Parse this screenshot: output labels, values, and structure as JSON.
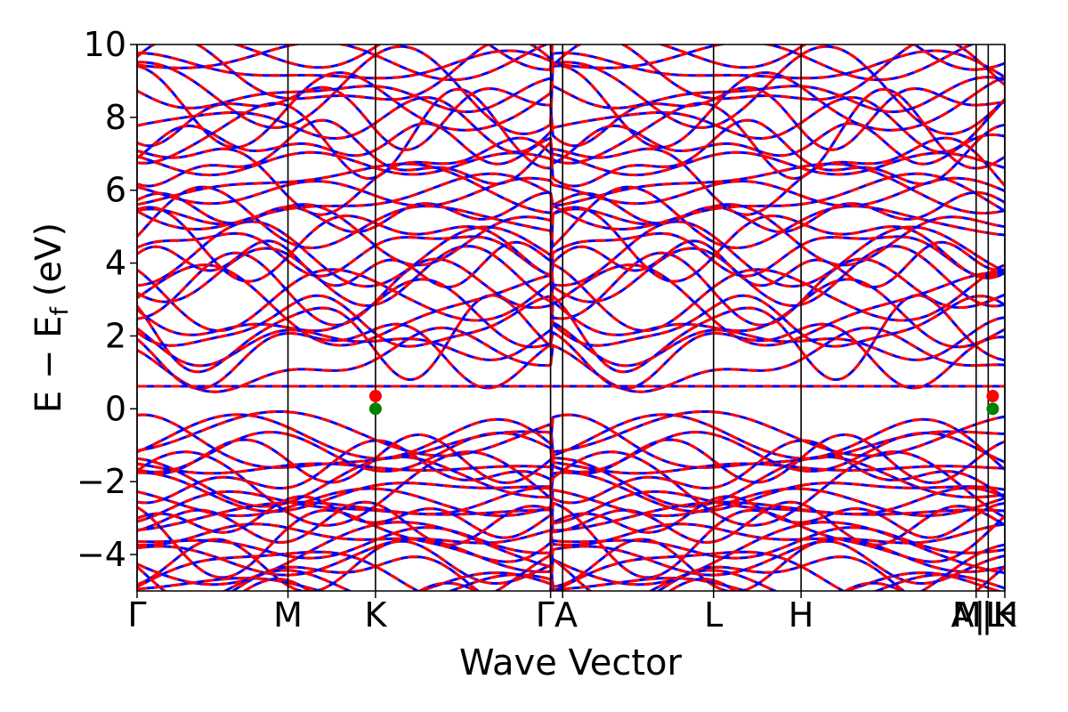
{
  "chart_data": {
    "type": "line",
    "title": "",
    "xlabel": "Wave Vector",
    "ylabel": "E − E",
    "ylabel_subscript": "f",
    "ylabel_unit": "(eV)",
    "ylim": [
      -5,
      10
    ],
    "y_ticks": [
      -4,
      -2,
      0,
      2,
      4,
      6,
      8,
      10
    ],
    "y_tick_labels": [
      "−4",
      "−2",
      "0",
      "2",
      "4",
      "6",
      "8",
      "10"
    ],
    "x_range": [
      0,
      5.75
    ],
    "kpoints": [
      {
        "label": "Γ",
        "x": 0.0
      },
      {
        "label": "M",
        "x": 1.0
      },
      {
        "label": "K",
        "x": 1.58
      },
      {
        "label": "Γ",
        "x": 2.74
      },
      {
        "label": "A",
        "x": 2.82
      },
      {
        "label": "L",
        "x": 3.82
      },
      {
        "label": "H",
        "x": 4.4
      },
      {
        "label": "A",
        "x": 5.56
      },
      {
        "label": "L",
        "x": 5.64
      },
      {
        "label": "M",
        "x": 5.58
      },
      {
        "label": "H",
        "x": 5.66
      },
      {
        "label": "K",
        "x": 5.75
      }
    ],
    "kpoint_label_text": [
      "Γ",
      "M",
      "K",
      "ΓA",
      "L",
      "H",
      "A|L",
      "M|H",
      "K"
    ],
    "series_styles": [
      {
        "color": "#0000ff",
        "style": "solid"
      },
      {
        "color": "#ff0000",
        "style": "dashed"
      }
    ],
    "flat_band_energy": 0.62,
    "markers": [
      {
        "x": 1.58,
        "y": 0.35,
        "color": "#ff0000"
      },
      {
        "x": 1.58,
        "y": 0.0,
        "color": "#008000"
      },
      {
        "x": 5.67,
        "y": 0.35,
        "color": "#ff0000"
      },
      {
        "x": 5.67,
        "y": 0.0,
        "color": "#008000"
      }
    ],
    "grid": false,
    "legend": "none"
  }
}
